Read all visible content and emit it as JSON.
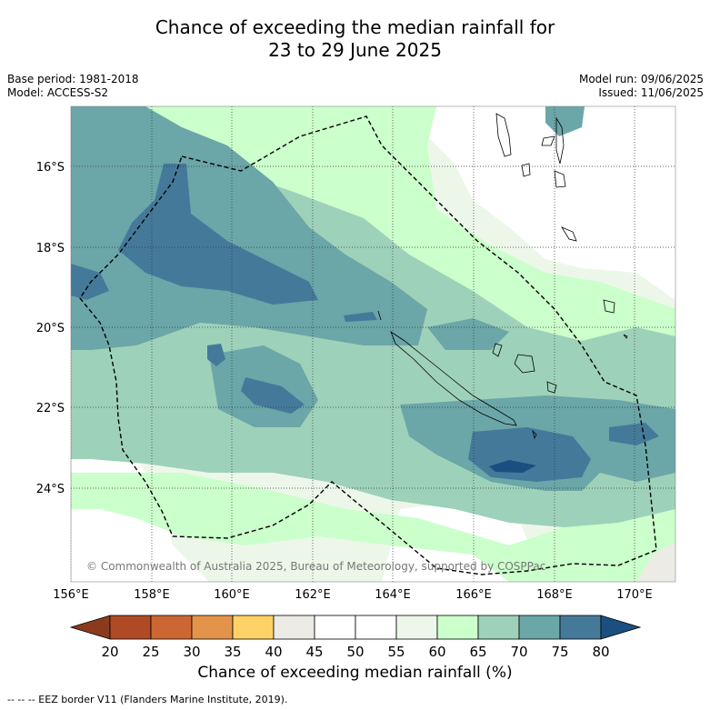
{
  "title_line1": "Chance of exceeding the median rainfall for",
  "title_line2": "23 to 29 June 2025",
  "base_period": "Base period: 1981-2018",
  "model": "Model: ACCESS-S2",
  "model_run": "Model run: 09/06/2025",
  "issued": "Issued: 11/06/2025",
  "copyright": "© Commonwealth of Australia 2025, Bureau of Meteorology, supported by COSPPac",
  "lat_labels": [
    "16°S",
    "18°S",
    "20°S",
    "22°S",
    "24°S"
  ],
  "lon_labels": [
    "156°E",
    "158°E",
    "160°E",
    "162°E",
    "164°E",
    "166°E",
    "168°E",
    "170°E"
  ],
  "colorbar": {
    "ticks": [
      "20",
      "25",
      "30",
      "35",
      "40",
      "45",
      "50",
      "55",
      "60",
      "65",
      "70",
      "75",
      "80"
    ],
    "colors": [
      "#8b3a1e",
      "#b04a24",
      "#cc6633",
      "#e3944a",
      "#fdd267",
      "#edebe6",
      "#ffffff",
      "#ffffff",
      "#ecf7ea",
      "#cbffcb",
      "#9ed1b9",
      "#6ba6a8",
      "#45799a",
      "#1a4f80"
    ],
    "label": "Chance of exceeding median rainfall (%)"
  },
  "footnote": "--  --  -- EEZ border V11 (Flanders Marine Institute, 2019)."
}
